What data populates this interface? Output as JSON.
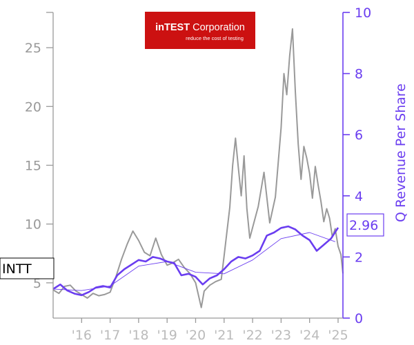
{
  "chart_data": {
    "type": "line",
    "ticker_label": "INTT",
    "last_value_label": "2.96",
    "left_axis": {
      "ylim": [
        2,
        28
      ],
      "ticks": [
        5,
        10,
        15,
        20,
        25
      ],
      "tick_labels": [
        "5",
        "10",
        "15",
        "20",
        "25"
      ],
      "color": "#999999"
    },
    "right_axis": {
      "label": "Q Revenue Per Share",
      "ylim": [
        0,
        10
      ],
      "ticks": [
        0,
        2,
        4,
        6,
        8,
        10
      ],
      "tick_labels": [
        "0",
        "2",
        "4",
        "6",
        "8",
        "10"
      ],
      "color": "#6a3df0"
    },
    "x_axis": {
      "xlim": [
        2015.0,
        2025.17
      ],
      "ticks": [
        2016,
        2017,
        2018,
        2019,
        2020,
        2021,
        2022,
        2023,
        2024,
        2025
      ],
      "tick_labels": [
        "'16",
        "'17",
        "'18",
        "'19",
        "'20",
        "'21",
        "'22",
        "'23",
        "'24",
        "'25"
      ]
    },
    "logo": {
      "brand_bold": "inTEST",
      "brand_rest": " Corporation",
      "tagline": "reduce the cost of testing",
      "bg_color": "#cc1111"
    },
    "series": [
      {
        "axis": "left",
        "color": "#999999",
        "x": [
          2015.0,
          2015.2,
          2015.4,
          2015.6,
          2015.8,
          2016.0,
          2016.2,
          2016.4,
          2016.6,
          2016.8,
          2017.0,
          2017.2,
          2017.4,
          2017.6,
          2017.8,
          2018.0,
          2018.2,
          2018.4,
          2018.6,
          2018.8,
          2019.0,
          2019.2,
          2019.4,
          2019.6,
          2019.8,
          2020.0,
          2020.2,
          2020.3,
          2020.5,
          2020.7,
          2020.9,
          2021.0,
          2021.2,
          2021.3,
          2021.4,
          2021.5,
          2021.6,
          2021.7,
          2021.8,
          2021.9,
          2022.0,
          2022.2,
          2022.4,
          2022.6,
          2022.8,
          2023.0,
          2023.1,
          2023.2,
          2023.3,
          2023.4,
          2023.5,
          2023.6,
          2023.7,
          2023.8,
          2023.9,
          2024.0,
          2024.1,
          2024.2,
          2024.3,
          2024.4,
          2024.5,
          2024.6,
          2024.7,
          2024.8,
          2024.9,
          2025.0,
          2025.1,
          2025.17
        ],
        "values": [
          4.4,
          4.1,
          4.7,
          4.8,
          4.3,
          4.0,
          3.7,
          4.1,
          3.9,
          4.0,
          4.2,
          5.5,
          7.0,
          8.3,
          9.4,
          8.6,
          7.6,
          7.3,
          8.8,
          7.4,
          6.5,
          6.7,
          7.0,
          6.3,
          5.8,
          5.0,
          2.9,
          4.3,
          4.8,
          5.1,
          5.3,
          7.3,
          11.4,
          15.0,
          17.3,
          14.8,
          12.4,
          15.8,
          11.3,
          8.8,
          9.7,
          11.5,
          14.4,
          10.1,
          12.3,
          18.2,
          22.8,
          21.0,
          24.3,
          26.6,
          21.3,
          16.8,
          13.8,
          16.6,
          15.6,
          14.3,
          12.2,
          14.9,
          13.3,
          11.9,
          10.2,
          11.3,
          10.5,
          8.9,
          9.6,
          8.1,
          7.4,
          5.8
        ]
      },
      {
        "axis": "right",
        "color": "#6a3df0",
        "x": [
          2015.0,
          2015.25,
          2015.5,
          2015.75,
          2016.0,
          2016.25,
          2016.5,
          2016.75,
          2017.0,
          2017.25,
          2017.5,
          2017.75,
          2018.0,
          2018.25,
          2018.5,
          2018.75,
          2019.0,
          2019.25,
          2019.5,
          2019.75,
          2020.0,
          2020.25,
          2020.5,
          2020.75,
          2021.0,
          2021.25,
          2021.5,
          2021.75,
          2022.0,
          2022.25,
          2022.5,
          2022.75,
          2023.0,
          2023.25,
          2023.5,
          2023.75,
          2024.0,
          2024.25,
          2024.5,
          2024.75,
          2025.0
        ],
        "values": [
          0.95,
          1.1,
          0.9,
          0.8,
          0.75,
          0.85,
          1.0,
          1.05,
          1.0,
          1.4,
          1.6,
          1.75,
          1.9,
          1.85,
          2.0,
          1.95,
          1.85,
          1.8,
          1.4,
          1.45,
          1.35,
          1.1,
          1.3,
          1.4,
          1.6,
          1.85,
          2.0,
          1.95,
          2.05,
          2.2,
          2.7,
          2.8,
          2.95,
          3.0,
          2.9,
          2.7,
          2.55,
          2.2,
          2.4,
          2.6,
          2.96
        ]
      },
      {
        "axis": "right",
        "color": "#6a3df0",
        "x": [
          2015.0,
          2016.0,
          2017.0,
          2018.0,
          2019.0,
          2020.0,
          2021.0,
          2022.0,
          2023.0,
          2024.0,
          2024.9
        ],
        "values": [
          0.95,
          0.9,
          1.05,
          1.7,
          1.85,
          1.5,
          1.45,
          1.9,
          2.6,
          2.8,
          2.5
        ]
      }
    ]
  }
}
